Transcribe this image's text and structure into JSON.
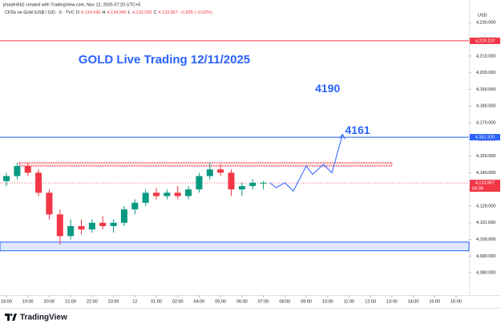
{
  "chart_data": {
    "type": "candlestick",
    "header": {
      "author_line": "jrtrader562 created with TradingView.com, Nov 12, 2025 07:20 UTC+5",
      "symbol": "CFDs on Gold (US$ / OZ) · 5 · TVC",
      "ohlc": [
        {
          "key": "O",
          "text": "4,134.690"
        },
        {
          "key": "H",
          "text": "4,134.940"
        },
        {
          "key": "L",
          "text": "4,133.530"
        },
        {
          "key": "C",
          "text": "4,133.867"
        }
      ],
      "change": "−0.825 (−0.02%)"
    },
    "title": "GOLD Live Trading 12/11/2025",
    "y_axis_label": "USD",
    "x": [
      0,
      0.5,
      1,
      1.5,
      2,
      2.5,
      3,
      3.5,
      4,
      4.5,
      5,
      5.5,
      6,
      6.5,
      7,
      7.5,
      8,
      8.5,
      9,
      9.5,
      10,
      10.5,
      11,
      11.5,
      12
    ],
    "open": [
      4135,
      4138,
      4144,
      4140,
      4128,
      4115,
      4102,
      4108,
      4106,
      4110,
      4108,
      4110,
      4118,
      4122,
      4128,
      4126,
      4128,
      4126,
      4130,
      4138,
      4142,
      4140,
      4130,
      4132,
      4134
    ],
    "high": [
      4140,
      4146,
      4146,
      4142,
      4130,
      4118,
      4112,
      4112,
      4112,
      4114,
      4112,
      4120,
      4124,
      4130,
      4131,
      4130,
      4132,
      4132,
      4140,
      4146,
      4145,
      4142,
      4134,
      4136,
      4135
    ],
    "low": [
      4132,
      4136,
      4138,
      4126,
      4112,
      4097,
      4100,
      4103,
      4104,
      4106,
      4104,
      4108,
      4115,
      4120,
      4124,
      4124,
      4124,
      4124,
      4128,
      4136,
      4138,
      4126,
      4126,
      4130,
      4130
    ],
    "close": [
      4138,
      4144,
      4140,
      4128,
      4115,
      4102,
      4108,
      4106,
      4110,
      4108,
      4110,
      4118,
      4122,
      4128,
      4126,
      4128,
      4126,
      4130,
      4138,
      4142,
      4140,
      4130,
      4132,
      4134,
      4134
    ],
    "up_color": "#089981",
    "down_color": "#f23645",
    "xlim": [
      -0.3,
      21.6
    ],
    "xticks": [
      {
        "value": 0,
        "label": "18:00"
      },
      {
        "value": 1,
        "label": "19:00"
      },
      {
        "value": 2,
        "label": "20:00"
      },
      {
        "value": 3,
        "label": "21:00"
      },
      {
        "value": 4,
        "label": "22:00"
      },
      {
        "value": 5,
        "label": "23:00"
      },
      {
        "value": 6,
        "label": "12"
      },
      {
        "value": 7,
        "label": "01:00"
      },
      {
        "value": 8,
        "label": "02:00"
      },
      {
        "value": 9,
        "label": "04:00"
      },
      {
        "value": 10,
        "label": "05:00"
      },
      {
        "value": 11,
        "label": "06:00"
      },
      {
        "value": 12,
        "label": "07:00"
      },
      {
        "value": 13,
        "label": "08:00"
      },
      {
        "value": 14,
        "label": "09:00"
      },
      {
        "value": 15,
        "label": "10:00"
      },
      {
        "value": 16,
        "label": "11:00"
      },
      {
        "value": 17,
        "label": "12:00"
      },
      {
        "value": 18,
        "label": "13:00"
      },
      {
        "value": 19,
        "label": "14:00"
      },
      {
        "value": 20,
        "label": "15:00"
      },
      {
        "value": 21,
        "label": "16:00"
      }
    ],
    "ylim": [
      4066.6,
      4243.6
    ],
    "yticks": [
      {
        "value": 4080,
        "label": "4,080.000"
      },
      {
        "value": 4090,
        "label": "4,090.000"
      },
      {
        "value": 4100,
        "label": "4,100.000"
      },
      {
        "value": 4110,
        "label": "4,110.000"
      },
      {
        "value": 4120,
        "label": "4,120.000"
      },
      {
        "value": 4130,
        "label": "4,130.000"
      },
      {
        "value": 4140,
        "label": "4,140.000"
      },
      {
        "value": 4150,
        "label": "4,150.000"
      },
      {
        "value": 4160,
        "label": "4,160.000"
      },
      {
        "value": 4170,
        "label": "4,170.000"
      },
      {
        "value": 4180,
        "label": "4,180.000"
      },
      {
        "value": 4190,
        "label": "4,190.000"
      },
      {
        "value": 4200,
        "label": "4,200.000"
      },
      {
        "value": 4210,
        "label": "4,210.000"
      },
      {
        "value": 4220,
        "label": "4,220.000"
      },
      {
        "value": 4230,
        "label": "4,230.000"
      }
    ],
    "levels": [
      {
        "value": 4219.11,
        "label": "4,219.110",
        "color": "#f23645"
      },
      {
        "value": 4161.32,
        "label": "4,161.320",
        "color": "#2962ff"
      }
    ],
    "last_price": {
      "value": 4133.867,
      "label": "4,133.867",
      "countdown": "04:08",
      "color": "#f23645"
    },
    "zones": [
      {
        "from": 4144,
        "to": 4146,
        "x_from": 0.6,
        "x_to": 18,
        "color": "#f23645"
      },
      {
        "from": 4093.2,
        "to": 4098.4,
        "x_from": -0.3,
        "x_to": 21.6,
        "color": "#2962ff"
      }
    ],
    "projection": {
      "x": [
        12.3,
        12.6,
        13.0,
        13.4,
        14.0,
        14.3,
        14.8,
        15.2,
        15.7
      ],
      "y": [
        4134,
        4131,
        4134,
        4129,
        4144,
        4139,
        4145,
        4140,
        4163
      ],
      "color": "#2962ff"
    },
    "price_notes": [
      {
        "text": "4190",
        "x": 15.0,
        "y": 4190
      },
      {
        "text": "4161",
        "x": 16.4,
        "y": 4165
      }
    ],
    "brand": "TradingView"
  }
}
